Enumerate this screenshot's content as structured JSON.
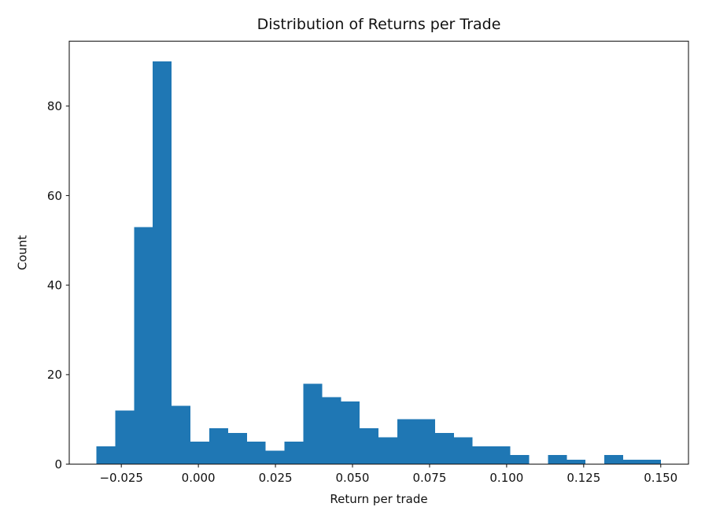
{
  "chart_data": {
    "type": "bar",
    "subtype": "histogram",
    "title": "Distribution of Returns per Trade",
    "xlabel": "Return per trade",
    "ylabel": "Count",
    "bin_start": -0.0331,
    "bin_width": 0.006104,
    "counts": [
      4,
      12,
      53,
      90,
      13,
      5,
      8,
      7,
      5,
      3,
      5,
      18,
      15,
      14,
      8,
      6,
      10,
      10,
      7,
      6,
      4,
      4,
      2,
      0,
      2,
      1,
      0,
      2,
      1,
      1
    ],
    "xlim": [
      -0.0419,
      0.159
    ],
    "ylim": [
      0,
      94.5
    ],
    "x_tick_values": [
      -0.025,
      0.0,
      0.025,
      0.05,
      0.075,
      0.1,
      0.125,
      0.15
    ],
    "x_tick_labels": [
      "−0.025",
      "0.000",
      "0.025",
      "0.050",
      "0.075",
      "0.100",
      "0.125",
      "0.150"
    ],
    "y_tick_values": [
      0,
      20,
      40,
      60,
      80
    ],
    "y_tick_labels": [
      "0",
      "20",
      "40",
      "60",
      "80"
    ],
    "grid": false,
    "legend_position": "none",
    "bar_color": "#1f77b4",
    "axis_color": "#1c1c1c",
    "text_color": "#111111",
    "background_color": "#ffffff"
  }
}
